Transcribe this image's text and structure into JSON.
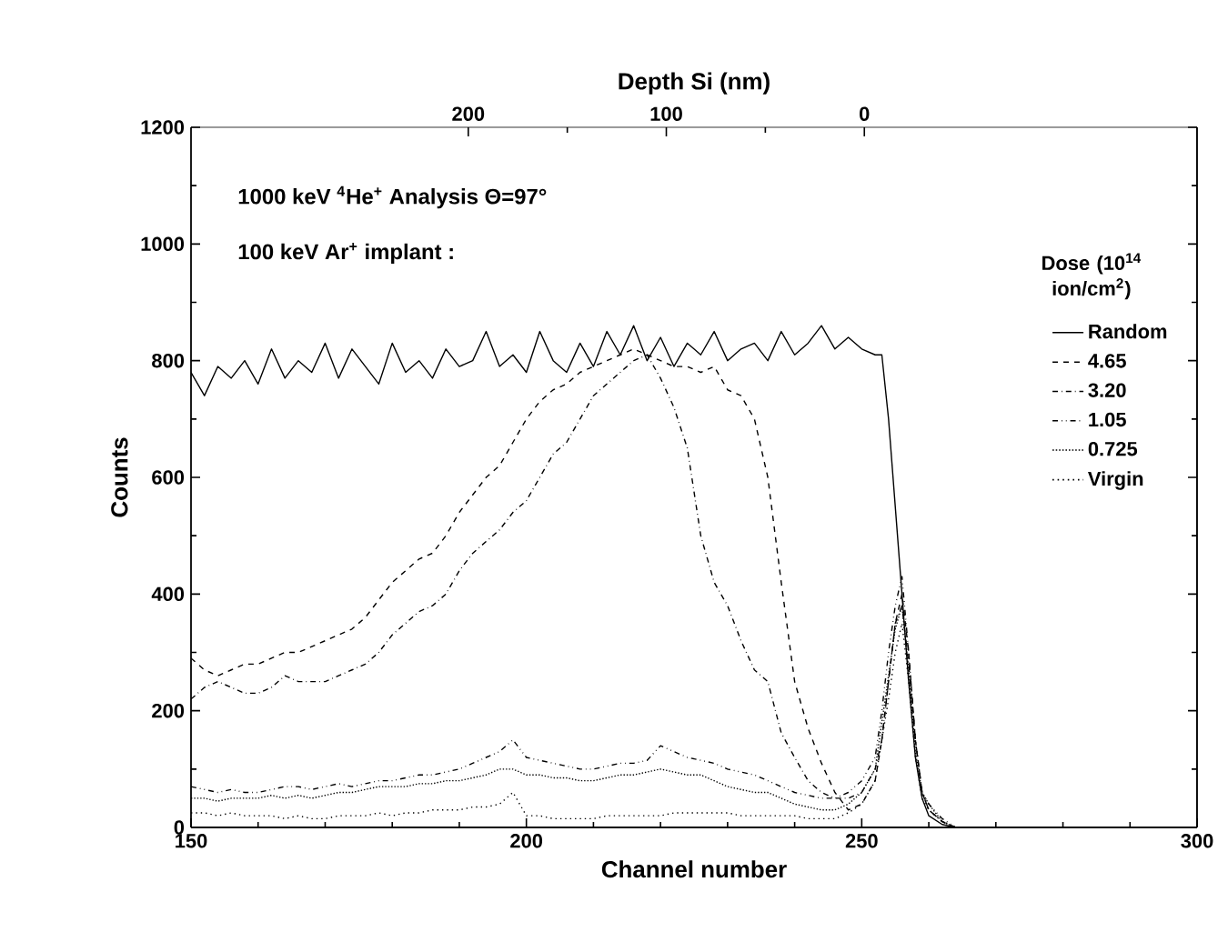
{
  "chart_data": {
    "type": "line",
    "xlabel": "Channel number",
    "ylabel": "Counts",
    "x2label": "Depth Si (nm)",
    "xlim": [
      150,
      300
    ],
    "xticks": [
      150,
      200,
      250,
      300
    ],
    "ylim": [
      0,
      1200
    ],
    "yticks": [
      0,
      200,
      400,
      600,
      800,
      1000,
      1200
    ],
    "x2lim": [
      340,
      -168
    ],
    "x2ticks": [
      200,
      100,
      0
    ],
    "legend": "right",
    "legend_title": "Dose (10$^{14}$ ion/cm$^{2}$)",
    "grid": false,
    "annotations": [
      "1000 keV $^{4}$He$^{+}$ Analysis Θ=97°",
      "100 keV Ar$^{+}$ implant :"
    ],
    "x": [
      150,
      152,
      154,
      156,
      158,
      160,
      162,
      164,
      166,
      168,
      170,
      172,
      174,
      176,
      178,
      180,
      182,
      184,
      186,
      188,
      190,
      192,
      194,
      196,
      198,
      200,
      202,
      204,
      206,
      208,
      210,
      212,
      214,
      216,
      218,
      220,
      222,
      224,
      226,
      228,
      230,
      232,
      234,
      236,
      238,
      240,
      242,
      244,
      246,
      248,
      250,
      252,
      253,
      254,
      255,
      256,
      257,
      258,
      259,
      260,
      262,
      264,
      270,
      280,
      300
    ],
    "series": [
      {
        "name": "Random",
        "color": "#000000",
        "line_style": "solid",
        "values": [
          780,
          740,
          790,
          770,
          800,
          760,
          820,
          770,
          800,
          780,
          830,
          770,
          820,
          790,
          760,
          830,
          780,
          800,
          770,
          820,
          790,
          800,
          850,
          790,
          810,
          780,
          850,
          800,
          780,
          830,
          790,
          850,
          810,
          860,
          800,
          840,
          790,
          830,
          810,
          850,
          800,
          820,
          830,
          800,
          850,
          810,
          830,
          860,
          820,
          840,
          820,
          810,
          810,
          700,
          550,
          400,
          250,
          120,
          50,
          20,
          5,
          0,
          0,
          0,
          0
        ]
      },
      {
        "name": "4.65",
        "color": "#000000",
        "line_style": "dashed",
        "values": [
          290,
          270,
          260,
          270,
          280,
          280,
          290,
          300,
          300,
          310,
          320,
          330,
          340,
          360,
          390,
          420,
          440,
          460,
          470,
          500,
          540,
          570,
          600,
          620,
          660,
          700,
          730,
          750,
          760,
          780,
          790,
          800,
          810,
          820,
          810,
          800,
          790,
          790,
          780,
          790,
          750,
          740,
          700,
          600,
          420,
          250,
          170,
          110,
          60,
          30,
          40,
          80,
          150,
          250,
          350,
          400,
          300,
          150,
          60,
          30,
          10,
          0,
          0,
          0,
          0
        ]
      },
      {
        "name": "3.20",
        "color": "#000000",
        "line_style": "dashdotted",
        "values": [
          220,
          240,
          250,
          240,
          230,
          230,
          240,
          260,
          250,
          250,
          250,
          260,
          270,
          280,
          300,
          330,
          350,
          370,
          380,
          400,
          440,
          470,
          490,
          510,
          540,
          560,
          600,
          640,
          660,
          700,
          740,
          760,
          780,
          800,
          810,
          770,
          720,
          650,
          500,
          420,
          380,
          320,
          270,
          250,
          162,
          120,
          80,
          60,
          50,
          50,
          60,
          100,
          150,
          250,
          350,
          380,
          280,
          150,
          60,
          30,
          10,
          0,
          0,
          0,
          0
        ]
      },
      {
        "name": "1.05",
        "color": "#000000",
        "line_style": "dashdotdotted",
        "values": [
          70,
          65,
          60,
          65,
          60,
          60,
          65,
          70,
          70,
          65,
          70,
          75,
          70,
          75,
          80,
          80,
          85,
          90,
          90,
          95,
          100,
          110,
          120,
          130,
          150,
          120,
          115,
          110,
          105,
          100,
          100,
          105,
          110,
          110,
          115,
          140,
          130,
          120,
          115,
          110,
          100,
          95,
          90,
          80,
          70,
          60,
          55,
          50,
          50,
          60,
          80,
          120,
          200,
          300,
          380,
          430,
          300,
          150,
          60,
          40,
          15,
          0,
          0,
          0,
          0
        ]
      },
      {
        "name": "0.725",
        "color": "#000000",
        "line_style": "densely dotted",
        "values": [
          50,
          50,
          45,
          50,
          50,
          50,
          55,
          50,
          55,
          50,
          55,
          60,
          60,
          65,
          70,
          70,
          70,
          75,
          75,
          80,
          80,
          85,
          90,
          100,
          100,
          90,
          90,
          85,
          85,
          80,
          80,
          85,
          90,
          90,
          95,
          100,
          95,
          90,
          90,
          80,
          70,
          65,
          60,
          60,
          50,
          40,
          35,
          30,
          30,
          40,
          60,
          100,
          180,
          260,
          340,
          380,
          270,
          130,
          60,
          40,
          10,
          0,
          0,
          0,
          0
        ]
      },
      {
        "name": "Virgin",
        "color": "#000000",
        "line_style": "dotted",
        "values": [
          25,
          25,
          20,
          25,
          20,
          20,
          20,
          15,
          20,
          15,
          15,
          20,
          20,
          20,
          25,
          20,
          25,
          25,
          30,
          30,
          30,
          35,
          35,
          40,
          60,
          20,
          20,
          15,
          15,
          15,
          15,
          20,
          20,
          20,
          20,
          20,
          25,
          25,
          25,
          25,
          25,
          20,
          20,
          20,
          20,
          20,
          15,
          15,
          15,
          25,
          40,
          80,
          150,
          220,
          300,
          350,
          250,
          120,
          50,
          30,
          10,
          0,
          0,
          0,
          0
        ]
      }
    ]
  }
}
